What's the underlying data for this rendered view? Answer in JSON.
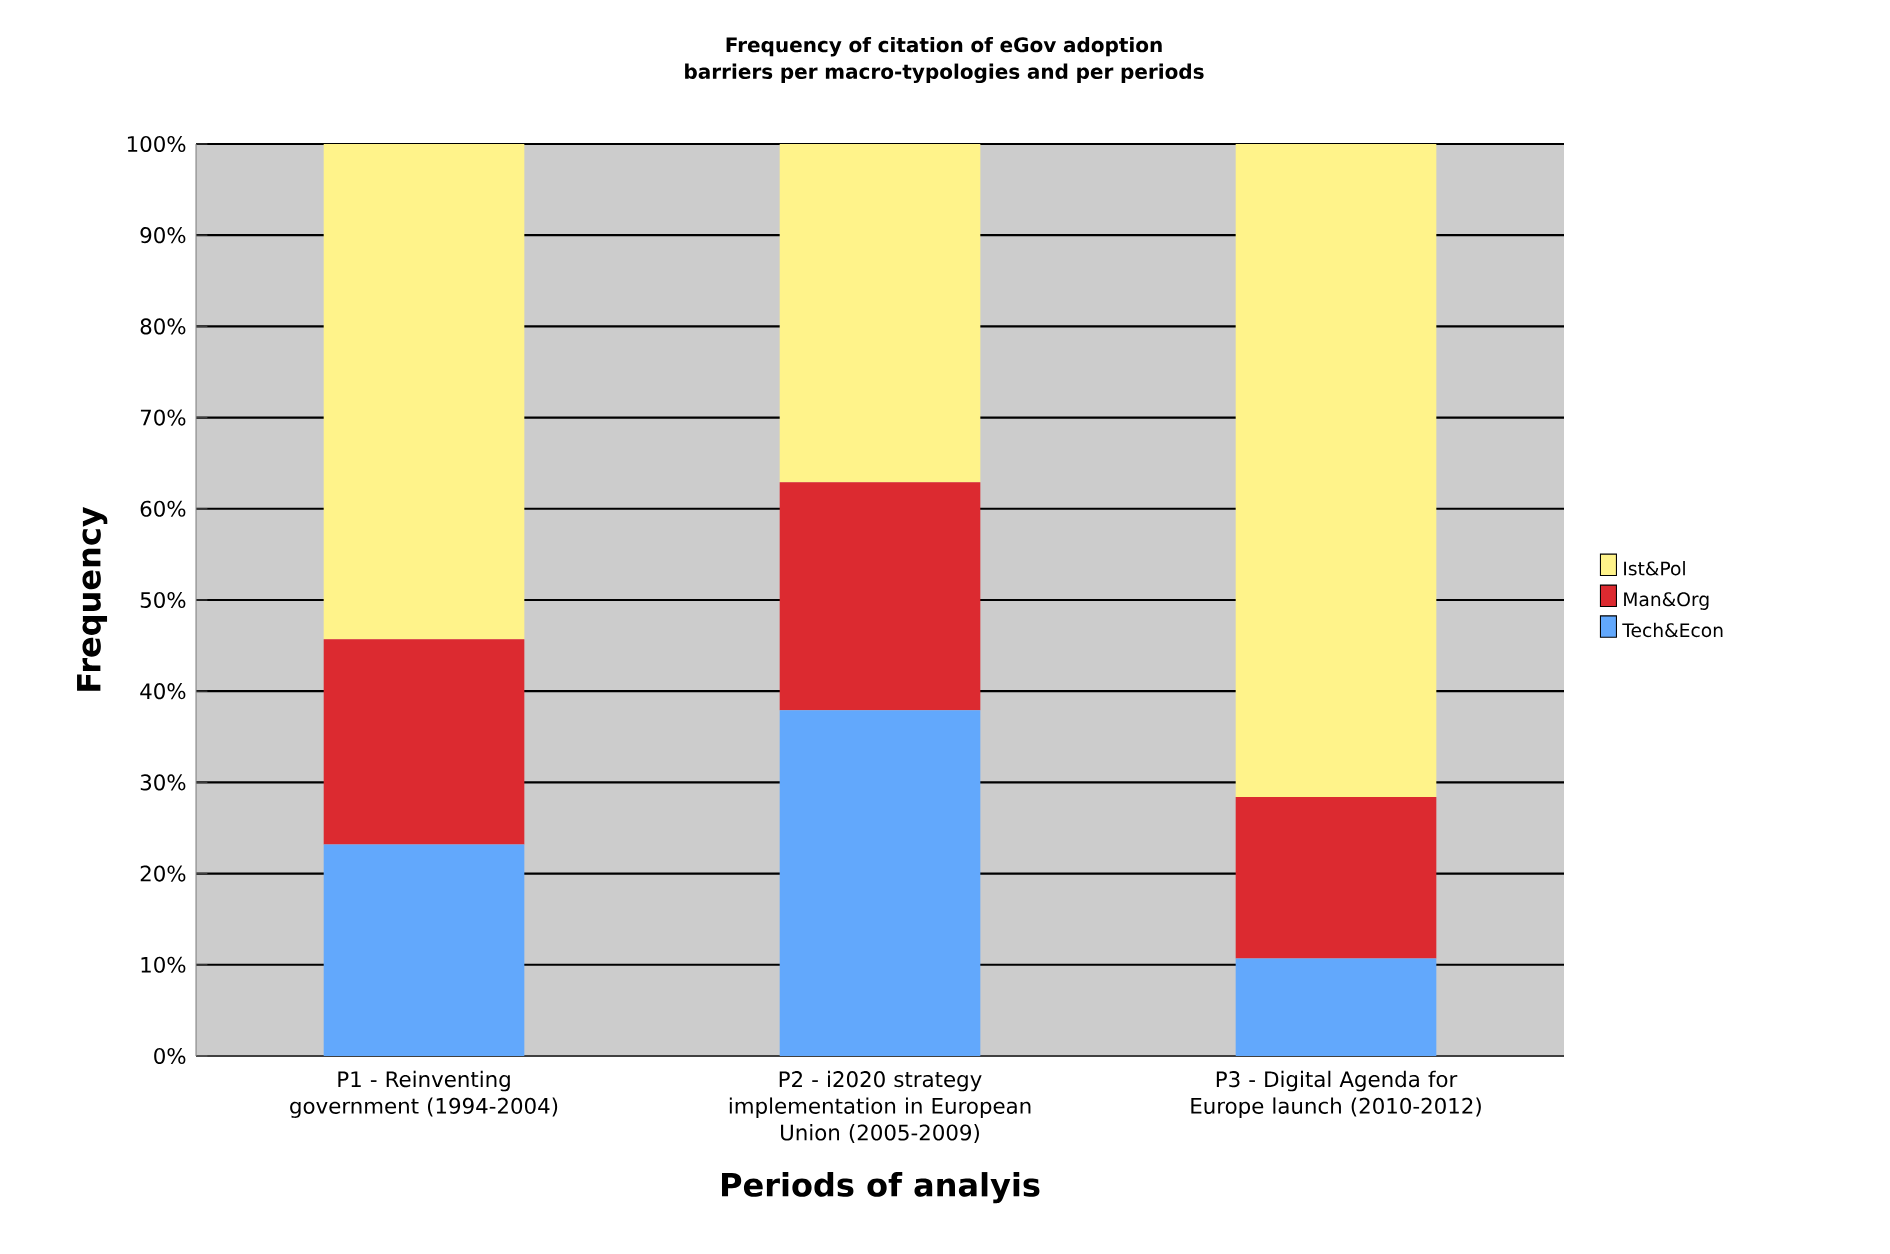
{
  "chart_data": {
    "type": "bar",
    "stacked": true,
    "title": "Frequency of citation of eGov adoption barriers per macro-typologies and per periods",
    "xlabel": "Periods of analyis",
    "ylabel": "Frequency",
    "categories": [
      "P1 - Reinventing government (1994-2004)",
      "P2 - i2020 strategy implementation in European Union (2005-2009)",
      "P3 - Digital Agenda for Europe launch (2010-2012)"
    ],
    "series": [
      {
        "name": "Tech&Econ",
        "color": "#62a8fc",
        "values": [
          23.2,
          37.9,
          10.7
        ]
      },
      {
        "name": "Man&Org",
        "color": "#dc2a30",
        "values": [
          22.5,
          25.0,
          17.7
        ]
      },
      {
        "name": "Ist&Pol",
        "color": "#fff38a",
        "values": [
          54.3,
          37.1,
          71.6
        ]
      }
    ],
    "ylim": [
      0,
      100
    ],
    "yticks": [
      {
        "value": 0,
        "label": "0%"
      },
      {
        "value": 10,
        "label": "10%"
      },
      {
        "value": 20,
        "label": "20%"
      },
      {
        "value": 30,
        "label": "30%"
      },
      {
        "value": 40,
        "label": "40%"
      },
      {
        "value": 50,
        "label": "50%"
      },
      {
        "value": 60,
        "label": "60%"
      },
      {
        "value": 70,
        "label": "70%"
      },
      {
        "value": 80,
        "label": "80%"
      },
      {
        "value": 90,
        "label": "90%"
      },
      {
        "value": 100,
        "label": "100%"
      }
    ],
    "grid": "y",
    "legend": "right"
  }
}
